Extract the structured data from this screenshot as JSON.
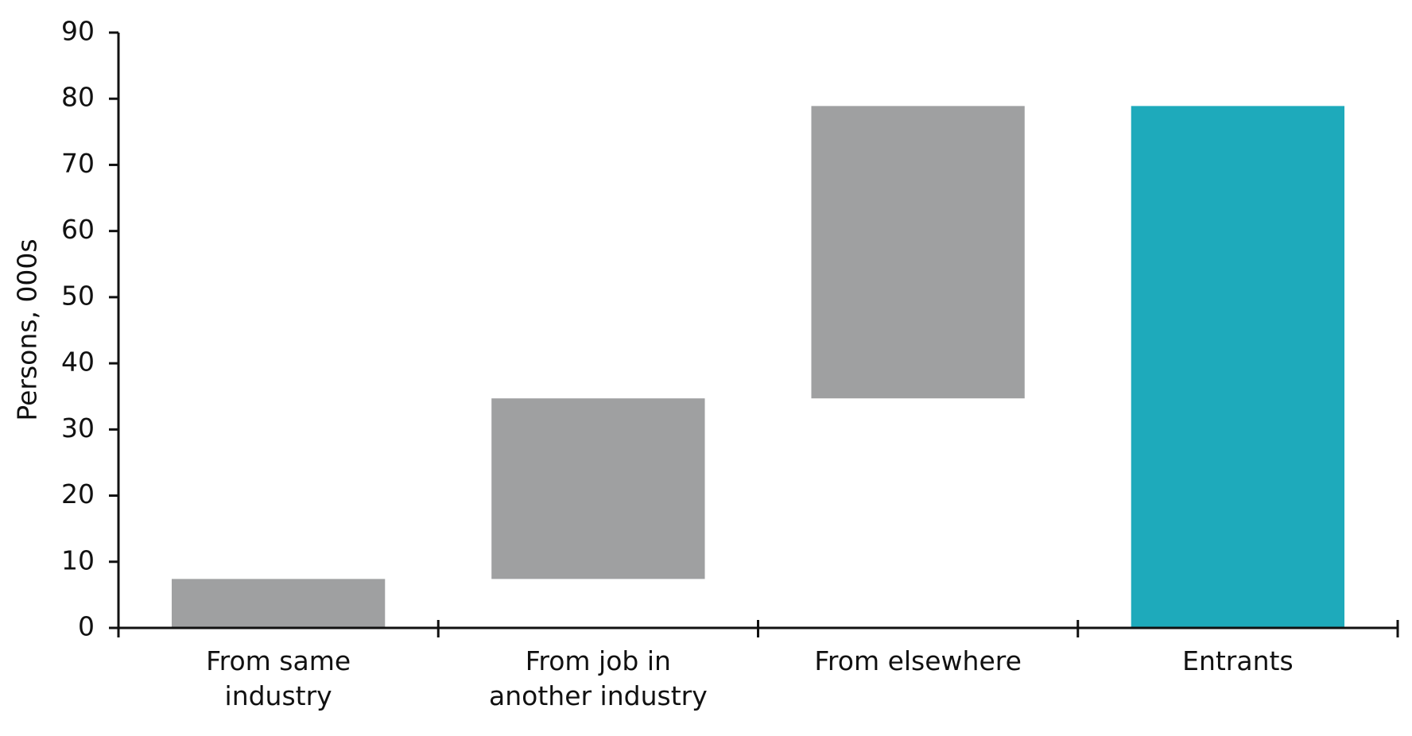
{
  "chart_data": {
    "type": "waterfall",
    "y_label": "Persons, 000s",
    "categories": [
      "From same industry",
      "From job in another industry",
      "From elsewhere",
      "Entrants"
    ],
    "values": [
      7.4,
      27.3,
      44.2,
      78.9
    ],
    "bar_kinds": [
      "delta",
      "delta",
      "delta",
      "total"
    ],
    "colors": [
      "#9fa0a1",
      "#9fa0a1",
      "#9fa0a1",
      "#1eaabb"
    ],
    "ylim": [
      0,
      90
    ],
    "yticks": [
      0,
      10,
      20,
      30,
      40,
      50,
      60,
      70,
      80,
      90
    ],
    "grid": false
  }
}
